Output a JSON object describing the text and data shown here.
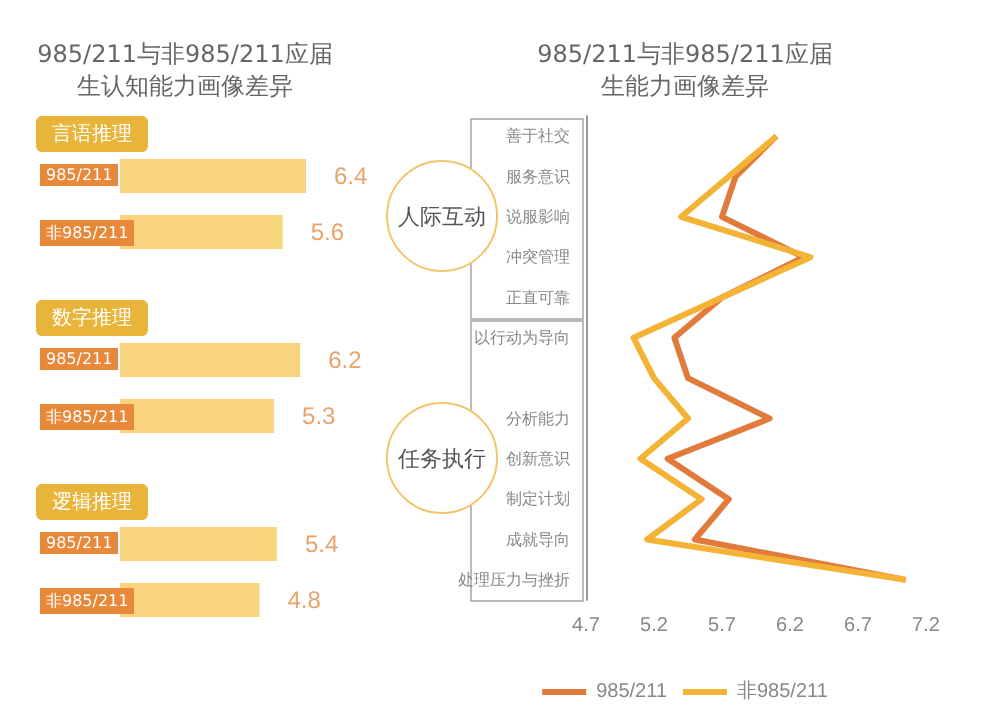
{
  "chart_data": [
    {
      "type": "bar",
      "orientation": "horizontal",
      "title": "985/211与非985/211应届生认知能力画像差异",
      "categories": [
        "言语推理",
        "数字推理",
        "逻辑推理"
      ],
      "series": [
        {
          "name": "985/211",
          "color": "#f8d47e",
          "values": [
            6.4,
            6.2,
            5.4
          ]
        },
        {
          "name": "非985/211",
          "color": "#f8d47e",
          "values": [
            5.6,
            5.3,
            4.8
          ]
        }
      ],
      "data_labels": true
    },
    {
      "type": "line",
      "orientation": "horizontal",
      "title": "985/211与非985/211应届生能力画像差异",
      "categories": [
        "善于社交",
        "服务意识",
        "说服影响",
        "冲突管理",
        "正直可靠",
        "以行动为导向",
        null,
        "分析能力",
        "创新意识",
        "制定计划",
        "成就导向",
        "处理压力与挫折"
      ],
      "series": [
        {
          "name": "985/211",
          "color": "#e07b3c",
          "values": [
            6.1,
            5.8,
            5.7,
            6.3,
            5.7,
            5.35,
            5.45,
            6.05,
            5.3,
            5.75,
            5.5,
            7.05
          ]
        },
        {
          "name": "非985/211",
          "color": "#f5b335",
          "values": [
            6.1,
            5.75,
            5.4,
            6.35,
            5.7,
            5.05,
            5.2,
            5.45,
            5.1,
            5.55,
            5.15,
            7.05
          ]
        }
      ],
      "xlim": [
        4.7,
        7.2
      ],
      "xticks": [
        4.7,
        5.2,
        5.7,
        6.2,
        6.7,
        7.2
      ],
      "legend": "bottom",
      "annotations": [
        "人际互动",
        "任务执行"
      ]
    }
  ]
}
